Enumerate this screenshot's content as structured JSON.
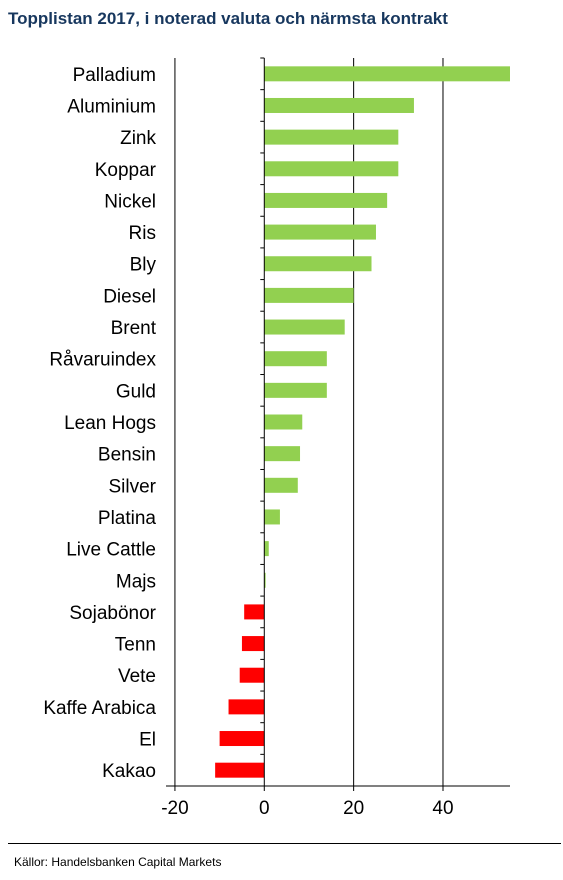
{
  "chart_data": {
    "type": "bar",
    "orientation": "horizontal",
    "title": "Topplistan 2017, i noterad valuta och närmsta kontrakt",
    "categories": [
      "Palladium",
      "Aluminium",
      "Zink",
      "Koppar",
      "Nickel",
      "Ris",
      "Bly",
      "Diesel",
      "Brent",
      "Råvaruindex",
      "Guld",
      "Lean Hogs",
      "Bensin",
      "Silver",
      "Platina",
      "Live Cattle",
      "Majs",
      "Sojabönor",
      "Tenn",
      "Vete",
      "Kaffe Arabica",
      "El",
      "Kakao"
    ],
    "values": [
      55,
      33.5,
      30,
      30,
      27.5,
      25,
      24,
      20,
      18,
      14,
      14,
      8.5,
      8,
      7.5,
      3.5,
      1,
      0.3,
      -4.5,
      -5,
      -5.5,
      -8,
      -10,
      -11
    ],
    "xlim": [
      -22,
      55
    ],
    "xticks": [
      -20,
      0,
      20,
      40
    ],
    "grid": true,
    "colors": {
      "positive": "#92d050",
      "negative": "#ff0000",
      "grid": "#000000"
    }
  },
  "source": "Källor: Handelsbanken Capital Markets"
}
